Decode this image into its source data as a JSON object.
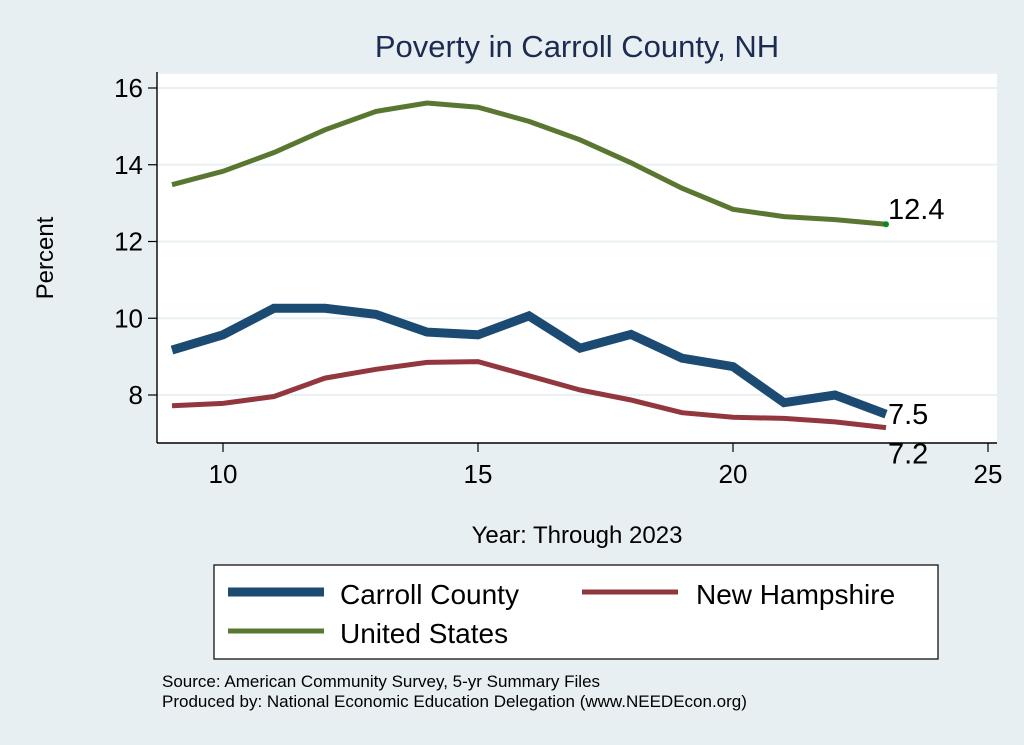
{
  "chart_data": {
    "type": "line",
    "title": "Poverty in Carroll County, NH",
    "xlabel": "Year: Through 2023",
    "ylabel": "Percent",
    "xlim": [
      8.3,
      25.2
    ],
    "ylim": [
      6.75,
      16.4
    ],
    "xticks": [
      10,
      15,
      20,
      25
    ],
    "yticks": [
      8,
      10,
      12,
      14,
      16
    ],
    "grid": "horizontal",
    "x": [
      9,
      10,
      11,
      12,
      13,
      14,
      15,
      16,
      17,
      18,
      19,
      20,
      21,
      22,
      23
    ],
    "series": [
      {
        "name": "Carroll County",
        "color": "#1b4a72",
        "width": "thick",
        "values": [
          9.17,
          9.57,
          10.26,
          10.26,
          10.1,
          9.64,
          9.57,
          10.06,
          9.22,
          9.58,
          8.96,
          8.74,
          7.8,
          8.0,
          7.5
        ],
        "end_label": "7.5"
      },
      {
        "name": "New Hampshire",
        "color": "#93373e",
        "width": "medium",
        "values": [
          7.72,
          7.78,
          7.96,
          8.44,
          8.67,
          8.85,
          8.87,
          8.5,
          8.13,
          7.87,
          7.54,
          7.42,
          7.39,
          7.3,
          7.15
        ],
        "end_label": "7.2"
      },
      {
        "name": "United States",
        "color": "#5a7731",
        "width": "medium",
        "values": [
          13.48,
          13.83,
          14.32,
          14.91,
          15.39,
          15.61,
          15.5,
          15.13,
          14.65,
          14.05,
          13.39,
          12.84,
          12.65,
          12.57,
          12.45
        ],
        "end_label": "12.4",
        "end_marker_color": "#0a8a1a"
      }
    ],
    "legend": {
      "placement": "bottom",
      "entries": [
        "Carroll County",
        "New Hampshire",
        "United States"
      ]
    },
    "notes": [
      "Source: American Community Survey, 5-yr Summary Files",
      "Produced by: National Economic Education Delegation (www.NEEDEcon.org)"
    ]
  }
}
